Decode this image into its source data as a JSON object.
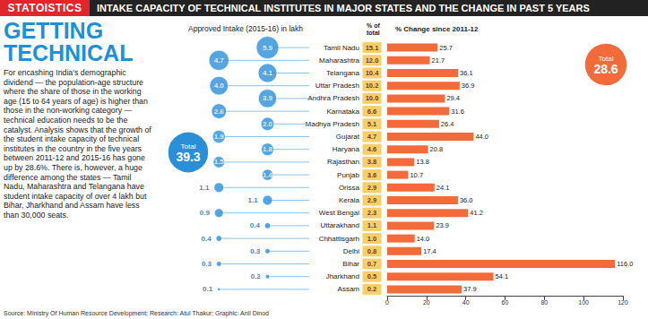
{
  "header": {
    "brand": "STATOISTICS",
    "title": "INTAKE CAPACITY OF TECHNICAL INSTITUTES IN MAJOR STATES AND THE CHANGE IN PAST 5 YEARS",
    "headline": "GETTING TECHNICAL",
    "body": "For encashing India's demographic dividend — the population-age structure where the share of those in the working age (15 to 64 years of age) is higher than those in the non-working category — technical education needs to be the catalyst. Analysis shows that the growth of the student intake capacity of technical institutes in the country in the five years between 2011-12 and 2015-16 has gone up by 28.6%. There is, however, a huge difference among the states — Tamil Nadu, Maharashtra and Telangana have student intake capacity of over 4 lakh but Bihar, Jharkhand and Assam have less than 30,000 seats.",
    "source": "Source: Ministry Of Human Resource Development; Research: Atul Thakur; Graphic: Anil Dinod"
  },
  "chart_data": [
    {
      "type": "scatter",
      "marker": "bubble",
      "title": "Approved Intake (2015-16) in lakh",
      "categories": [
        "Tamil Nadu",
        "Maharashtra",
        "Telangana",
        "Uttar Pradesh",
        "Andhra Pradesh",
        "Karnataka",
        "Madhya Pradesh",
        "Gujarat",
        "Haryana",
        "Rajasthan",
        "Punjab",
        "Orissa",
        "Kerala",
        "West Bengal",
        "Uttarakhand",
        "Chhattisgarh",
        "Delhi",
        "Bihar",
        "Jharkhand",
        "Assam"
      ],
      "values": [
        5.9,
        4.7,
        4.1,
        4.0,
        3.9,
        2.6,
        2.0,
        1.9,
        1.8,
        1.5,
        1.4,
        1.1,
        1.1,
        0.9,
        0.4,
        0.4,
        0.3,
        0.3,
        0.2,
        0.1
      ],
      "value_labels": [
        "5.9",
        "4.7",
        "4.1",
        "4.0",
        "3.9",
        "2.6",
        "2.0",
        "1.9",
        "1.8",
        "1.5",
        "1.4",
        "1.1",
        "1.1",
        "0.9",
        "0.4",
        "0.4",
        "0.3",
        "0.3",
        "0.2",
        "0.1"
      ],
      "color": "#2b8fd8",
      "data_labels": true,
      "tick_labels": false,
      "annotations": [
        {
          "text": "Total",
          "value": 39.3
        }
      ]
    },
    {
      "type": "table",
      "title": "% of total",
      "categories": [
        "Tamil Nadu",
        "Maharashtra",
        "Telangana",
        "Uttar Pradesh",
        "Andhra Pradesh",
        "Karnataka",
        "Madhya Pradesh",
        "Gujarat",
        "Haryana",
        "Rajasthan",
        "Punjab",
        "Orissa",
        "Kerala",
        "West Bengal",
        "Uttarakhand",
        "Chhattisgarh",
        "Delhi",
        "Bihar",
        "Jharkhand",
        "Assam"
      ],
      "values": [
        15.1,
        12.0,
        10.4,
        10.2,
        10.0,
        6.6,
        5.1,
        4.7,
        4.6,
        3.8,
        3.6,
        2.9,
        2.9,
        2.3,
        1.1,
        1.0,
        0.8,
        0.7,
        0.5,
        0.2
      ],
      "value_labels": [
        "15.1",
        "12.0",
        "10.4",
        "10.2",
        "10.0",
        "6.6",
        "5.1",
        "4.7",
        "4.6",
        "3.8",
        "3.6",
        "2.9",
        "2.9",
        "2.3",
        "1.1",
        "1.0",
        "0.8",
        "0.7",
        "0.5",
        "0.2"
      ],
      "color": "#f5c242"
    },
    {
      "type": "bar",
      "orientation": "horizontal",
      "title": "% Change since 2011-12",
      "categories": [
        "Tamil Nadu",
        "Maharashtra",
        "Telangana",
        "Uttar Pradesh",
        "Andhra Pradesh",
        "Karnataka",
        "Madhya Pradesh",
        "Gujarat",
        "Haryana",
        "Rajasthan",
        "Punjab",
        "Orissa",
        "Kerala",
        "West Bengal",
        "Uttarakhand",
        "Chhattisgarh",
        "Delhi",
        "Bihar",
        "Jharkhand",
        "Assam"
      ],
      "values": [
        25.7,
        21.7,
        36.1,
        36.9,
        29.4,
        31.6,
        26.4,
        44.0,
        20.8,
        13.8,
        10.7,
        24.1,
        36.0,
        41.2,
        23.9,
        14.0,
        17.4,
        116.0,
        54.1,
        37.9
      ],
      "value_labels": [
        "25.7",
        "21.7",
        "36.1",
        "36.9",
        "29.4",
        "31.6",
        "26.4",
        "44.0",
        "20.8",
        "13.8",
        "10.7",
        "24.1",
        "36.0",
        "41.2",
        "23.9",
        "14.0",
        "17.4",
        "116.0",
        "54.1",
        "37.9"
      ],
      "color": "#f36b3b",
      "xlim": [
        0,
        120
      ],
      "xticks": [
        0,
        20,
        40,
        60,
        80,
        100,
        120
      ],
      "grid": false,
      "data_labels": true,
      "tick_labels": "x",
      "annotations": [
        {
          "text": "Total",
          "value": 28.6
        }
      ]
    }
  ]
}
